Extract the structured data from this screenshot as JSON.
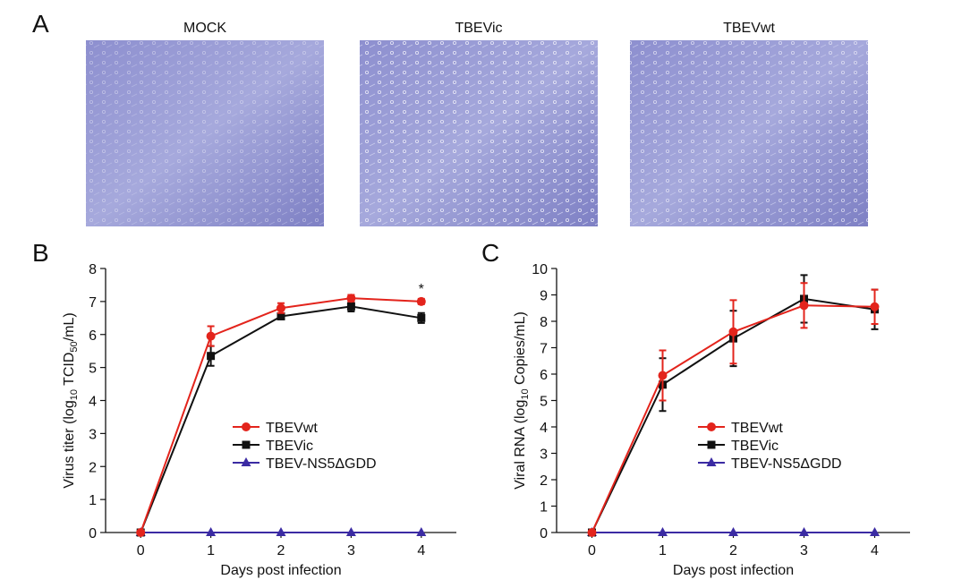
{
  "image_panel": {
    "panel_label": "A",
    "titles": [
      "MOCK",
      "TBEVic",
      "TBEVwt"
    ]
  },
  "chart_data": [
    {
      "type": "line",
      "panel_label": "B",
      "xlabel": "Days post infection",
      "ylabel_parts": [
        "Virus titer (log",
        "10",
        " TCID",
        "50",
        "/mL)"
      ],
      "x": [
        0,
        1,
        2,
        3,
        4
      ],
      "xlim": [
        -0.5,
        4.5
      ],
      "xticks": [
        0,
        1,
        2,
        3,
        4
      ],
      "ylim": [
        0,
        8
      ],
      "yticks": [
        0,
        1,
        2,
        3,
        4,
        5,
        6,
        7,
        8
      ],
      "annotation": "*",
      "series": [
        {
          "name": "TBEVwt",
          "color": "#e3241c",
          "marker": "circle",
          "values": [
            0,
            5.95,
            6.8,
            7.1,
            7.0
          ],
          "errors": [
            0,
            0.3,
            0.15,
            0.1,
            0.08
          ]
        },
        {
          "name": "TBEVic",
          "color": "#111111",
          "marker": "square",
          "values": [
            0,
            5.35,
            6.55,
            6.85,
            6.5
          ],
          "errors": [
            0,
            0.3,
            0.08,
            0.15,
            0.15
          ]
        },
        {
          "name": "TBEV-NS5ΔGDD",
          "color": "#3b2ba3",
          "marker": "triangle",
          "values": [
            0,
            0,
            0,
            0,
            0
          ],
          "errors": [
            0,
            0,
            0,
            0,
            0
          ]
        }
      ]
    },
    {
      "type": "line",
      "panel_label": "C",
      "xlabel": "Days post infection",
      "ylabel_parts": [
        "Viral RNA (log",
        "10",
        " Copies/mL)"
      ],
      "x": [
        0,
        1,
        2,
        3,
        4
      ],
      "xlim": [
        -0.5,
        4.5
      ],
      "xticks": [
        0,
        1,
        2,
        3,
        4
      ],
      "ylim": [
        0,
        10
      ],
      "yticks": [
        0,
        1,
        2,
        3,
        4,
        5,
        6,
        7,
        8,
        9,
        10
      ],
      "series": [
        {
          "name": "TBEVwt",
          "color": "#e3241c",
          "marker": "circle",
          "values": [
            0,
            5.95,
            7.6,
            8.6,
            8.55
          ],
          "errors": [
            0,
            0.95,
            1.2,
            0.85,
            0.65
          ]
        },
        {
          "name": "TBEVic",
          "color": "#111111",
          "marker": "square",
          "values": [
            0,
            5.6,
            7.35,
            8.85,
            8.45
          ],
          "errors": [
            0,
            1.0,
            1.05,
            0.9,
            0.75
          ]
        },
        {
          "name": "TBEV-NS5ΔGDD",
          "color": "#3b2ba3",
          "marker": "triangle",
          "values": [
            0,
            0,
            0,
            0,
            0
          ],
          "errors": [
            0,
            0,
            0,
            0,
            0
          ]
        }
      ]
    }
  ]
}
